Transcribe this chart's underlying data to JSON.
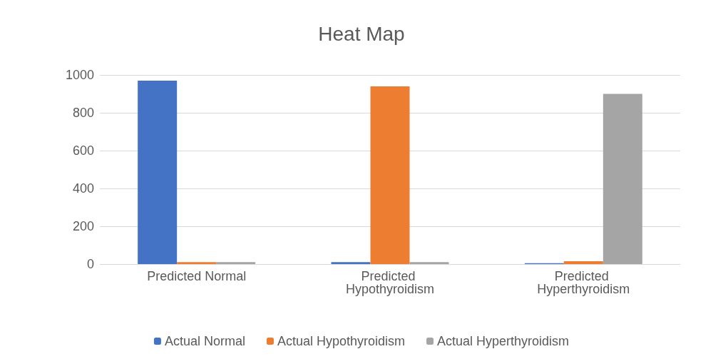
{
  "chart_data": {
    "type": "bar",
    "title": "Heat Map",
    "categories": [
      "Predicted Normal",
      "Predicted Hypothyroidism",
      "Predicted Hyperthyroidism"
    ],
    "series": [
      {
        "name": "Actual Normal",
        "color": "#4472c4",
        "values": [
          970,
          10,
          5
        ]
      },
      {
        "name": "Actual Hypothyroidism",
        "color": "#ed7d31",
        "values": [
          10,
          940,
          15
        ]
      },
      {
        "name": "Actual Hyperthyroidism",
        "color": "#a5a5a5",
        "values": [
          10,
          10,
          900
        ]
      }
    ],
    "ylim": [
      0,
      1000
    ],
    "yticks": [
      0,
      200,
      400,
      600,
      800,
      1000
    ],
    "grid": "y",
    "legend": "bottom"
  }
}
